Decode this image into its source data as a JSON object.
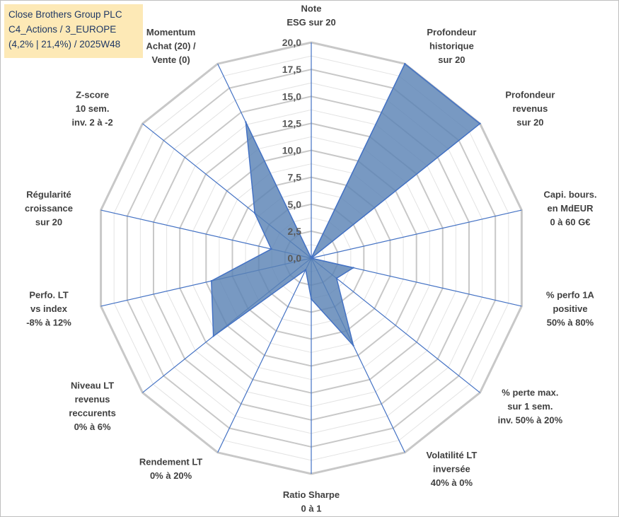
{
  "title": {
    "line1": "Close Brothers Group PLC",
    "line2": "C4_Actions / 3_EUROPE",
    "line3": "(4,2% | 21,4%) / 2025W48"
  },
  "chart_data": {
    "type": "radar",
    "rmin": 0,
    "rmax": 20,
    "ticks": [
      "0,0",
      "2,5",
      "5,0",
      "7,5",
      "10,0",
      "12,5",
      "15,0",
      "17,5",
      "20,0"
    ],
    "tick_values": [
      0,
      2.5,
      5,
      7.5,
      10,
      12.5,
      15,
      17.5,
      20
    ],
    "axes": [
      {
        "label": [
          "Note",
          "ESG sur 20"
        ],
        "value": 0
      },
      {
        "label": [
          "Profondeur",
          "historique",
          "sur 20"
        ],
        "value": 20
      },
      {
        "label": [
          "Profondeur",
          "revenus",
          "sur 20"
        ],
        "value": 20
      },
      {
        "label": [
          "Capi. bours.",
          "en MdEUR",
          "0 à 60 G€"
        ],
        "value": 0
      },
      {
        "label": [
          "% perfo 1A",
          "positive",
          "50% à 80%"
        ],
        "value": 4
      },
      {
        "label": [
          "% perte max.",
          "sur 1 sem.",
          "inv. 50% à 20%"
        ],
        "value": 3
      },
      {
        "label": [
          "Volatilité LT",
          "inversée",
          "40% à 0%"
        ],
        "value": 9
      },
      {
        "label": [
          "Ratio Sharpe",
          "0 à 1"
        ],
        "value": 3.8
      },
      {
        "label": [
          "Rendement LT",
          "0% à 20%"
        ],
        "value": 1.2
      },
      {
        "label": [
          "Niveau LT",
          "revenus",
          "reccurents",
          "0% à 6%"
        ],
        "value": 11.6
      },
      {
        "label": [
          "Perfo. LT",
          "vs index",
          "-8% à 12%"
        ],
        "value": 9.5
      },
      {
        "label": [
          "Régularité",
          "croissance",
          "sur 20"
        ],
        "value": 3.8
      },
      {
        "label": [
          "Z-score",
          "10 sem.",
          "inv. 2 à -2"
        ],
        "value": 6.7
      },
      {
        "label": [
          "Momentum",
          "Achat (20) /",
          "Vente (0)"
        ],
        "value": 14
      }
    ],
    "series": [
      {
        "name": "Close Brothers Group PLC"
      }
    ],
    "colors": {
      "fill": "#5a82b4",
      "stroke": "#4472c4",
      "grid_major": "#c8c8c8",
      "grid_minor": "#e3e3e3",
      "spoke": "#4472c4"
    }
  }
}
